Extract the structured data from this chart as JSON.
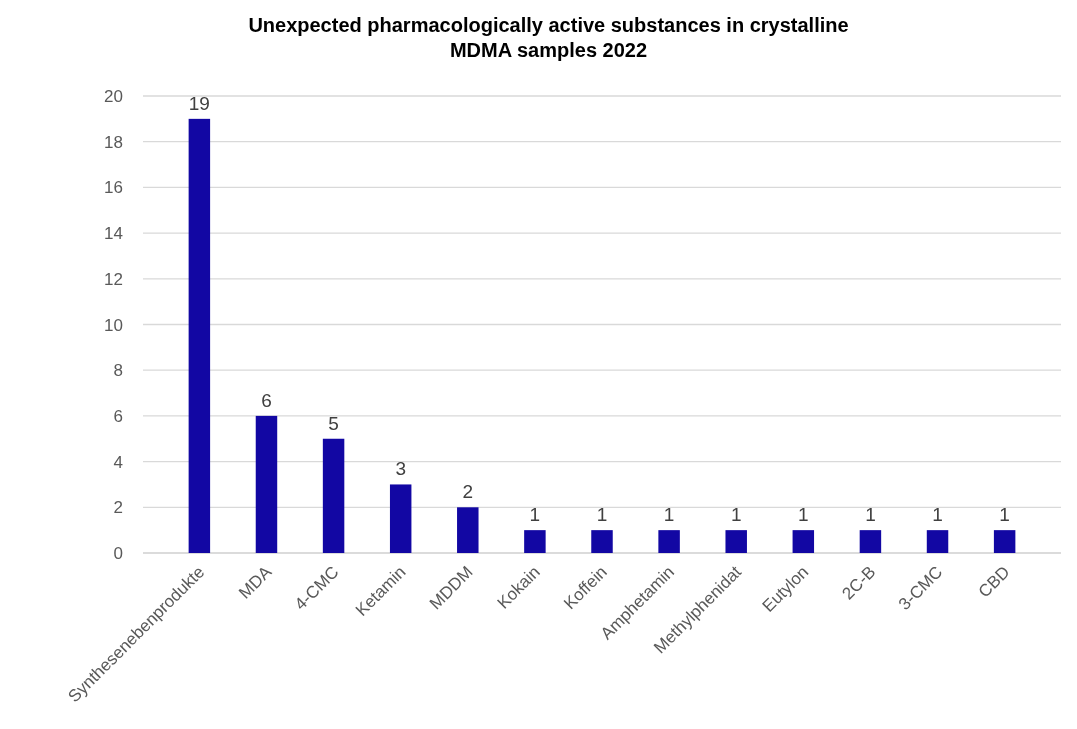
{
  "chart_data": {
    "type": "bar",
    "title": "Unexpected pharmacologically active substances in crystalline MDMA samples 2022",
    "categories": [
      "Synthesenebenprodukte",
      "MDA",
      "4-CMC",
      "Ketamin",
      "MDDM",
      "Kokain",
      "Koffein",
      "Amphetamin",
      "Methylphenidat",
      "Eutylon",
      "2C-B",
      "3-CMC",
      "CBD"
    ],
    "values": [
      19,
      6,
      5,
      3,
      2,
      1,
      1,
      1,
      1,
      1,
      1,
      1,
      1
    ],
    "color": "#1207a3",
    "ylim": [
      0,
      20
    ],
    "yticks": [
      0,
      2,
      4,
      6,
      8,
      10,
      12,
      14,
      16,
      18,
      20
    ],
    "grid": "y",
    "data_labels": true
  }
}
